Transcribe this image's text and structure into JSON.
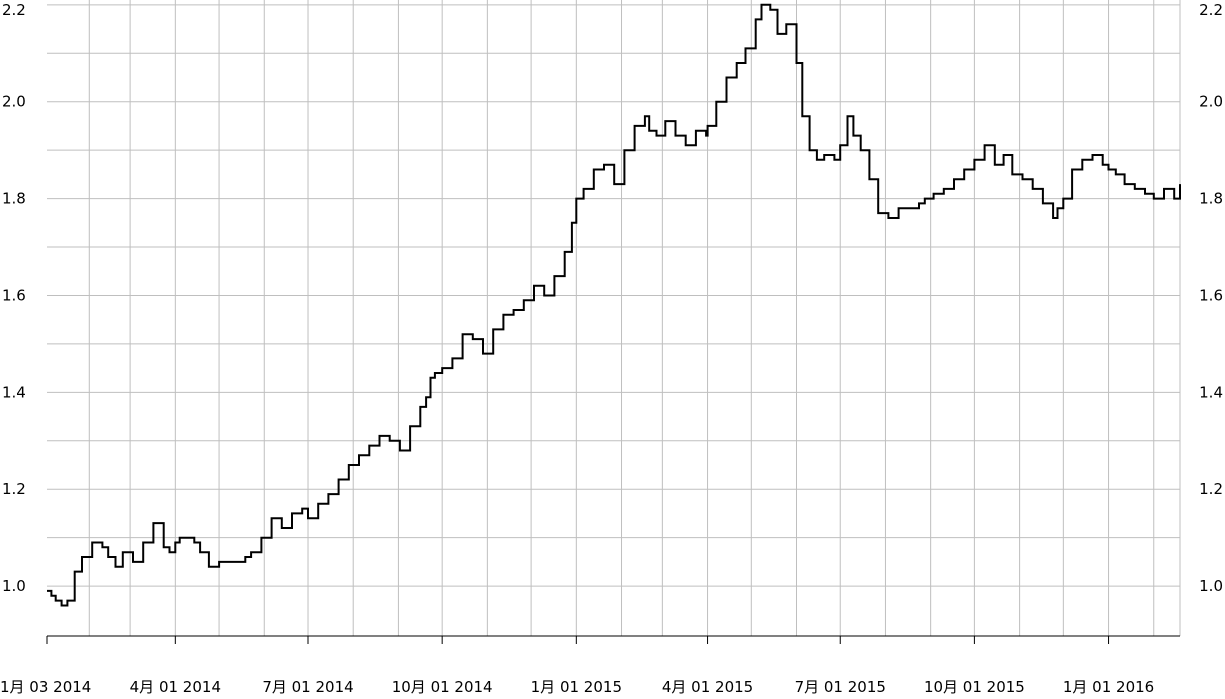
{
  "chart_data": {
    "type": "line",
    "title": "",
    "xlabel": "",
    "ylabel": "",
    "x_ticks": [
      "1月 03 2014",
      "4月 01 2014",
      "7月 01 2014",
      "10月 01 2014",
      "1月 01 2015",
      "4月 01 2015",
      "7月 01 2015",
      "10月 01 2015",
      "1月 01 2016"
    ],
    "y_ticks": [
      "1.0",
      "1.2",
      "1.4",
      "1.6",
      "1.8",
      "2.0",
      "2.2"
    ],
    "ylim": [
      0.93,
      2.21
    ],
    "xlim": [
      "2014-01-03",
      "2016-02-19"
    ],
    "grid": true,
    "colors": {
      "line": "#000000",
      "grid": "#bfbfbf",
      "axis": "#000000",
      "background": "#ffffff"
    },
    "series": [
      {
        "x": [
          "2014-01-03",
          "2014-01-06",
          "2014-01-09",
          "2014-01-13",
          "2014-01-17",
          "2014-01-22",
          "2014-01-27",
          "2014-02-03",
          "2014-02-10",
          "2014-02-14",
          "2014-02-19",
          "2014-02-24",
          "2014-03-03",
          "2014-03-10",
          "2014-03-17",
          "2014-03-24",
          "2014-03-28",
          "2014-04-01",
          "2014-04-04",
          "2014-04-09",
          "2014-04-14",
          "2014-04-18",
          "2014-04-24",
          "2014-05-01",
          "2014-05-06",
          "2014-05-12",
          "2014-05-19",
          "2014-05-23",
          "2014-05-30",
          "2014-06-06",
          "2014-06-13",
          "2014-06-20",
          "2014-06-27",
          "2014-07-01",
          "2014-07-08",
          "2014-07-15",
          "2014-07-22",
          "2014-07-29",
          "2014-08-05",
          "2014-08-12",
          "2014-08-19",
          "2014-08-26",
          "2014-09-02",
          "2014-09-09",
          "2014-09-16",
          "2014-09-20",
          "2014-09-23",
          "2014-09-26",
          "2014-10-01",
          "2014-10-08",
          "2014-10-15",
          "2014-10-22",
          "2014-10-29",
          "2014-11-05",
          "2014-11-12",
          "2014-11-19",
          "2014-11-26",
          "2014-12-03",
          "2014-12-10",
          "2014-12-17",
          "2014-12-24",
          "2014-12-29",
          "2015-01-01",
          "2015-01-06",
          "2015-01-13",
          "2015-01-20",
          "2015-01-27",
          "2015-02-03",
          "2015-02-10",
          "2015-02-17",
          "2015-02-20",
          "2015-02-25",
          "2015-03-03",
          "2015-03-10",
          "2015-03-17",
          "2015-03-24",
          "2015-03-31",
          "2015-04-01",
          "2015-04-07",
          "2015-04-14",
          "2015-04-21",
          "2015-04-27",
          "2015-05-04",
          "2015-05-08",
          "2015-05-14",
          "2015-05-19",
          "2015-05-25",
          "2015-06-01",
          "2015-06-05",
          "2015-06-10",
          "2015-06-15",
          "2015-06-20",
          "2015-06-27",
          "2015-07-01",
          "2015-07-06",
          "2015-07-10",
          "2015-07-15",
          "2015-07-21",
          "2015-07-27",
          "2015-08-03",
          "2015-08-10",
          "2015-08-17",
          "2015-08-24",
          "2015-08-28",
          "2015-09-03",
          "2015-09-10",
          "2015-09-17",
          "2015-09-24",
          "2015-10-01",
          "2015-10-08",
          "2015-10-15",
          "2015-10-21",
          "2015-10-27",
          "2015-11-03",
          "2015-11-10",
          "2015-11-17",
          "2015-11-24",
          "2015-11-27",
          "2015-12-01",
          "2015-12-07",
          "2015-12-14",
          "2015-12-21",
          "2015-12-28",
          "2016-01-01",
          "2016-01-06",
          "2016-01-12",
          "2016-01-19",
          "2016-01-26",
          "2016-02-01",
          "2016-02-08",
          "2016-02-15",
          "2016-02-19"
        ],
        "y": [
          0.99,
          0.98,
          0.97,
          0.96,
          0.97,
          1.03,
          1.06,
          1.09,
          1.08,
          1.06,
          1.04,
          1.07,
          1.05,
          1.09,
          1.13,
          1.08,
          1.07,
          1.09,
          1.1,
          1.1,
          1.09,
          1.07,
          1.04,
          1.05,
          1.05,
          1.05,
          1.06,
          1.07,
          1.1,
          1.14,
          1.12,
          1.15,
          1.16,
          1.14,
          1.17,
          1.19,
          1.22,
          1.25,
          1.27,
          1.29,
          1.31,
          1.3,
          1.28,
          1.33,
          1.37,
          1.39,
          1.43,
          1.44,
          1.45,
          1.47,
          1.52,
          1.51,
          1.48,
          1.53,
          1.56,
          1.57,
          1.59,
          1.62,
          1.6,
          1.64,
          1.69,
          1.75,
          1.8,
          1.82,
          1.86,
          1.87,
          1.83,
          1.9,
          1.95,
          1.97,
          1.94,
          1.93,
          1.96,
          1.93,
          1.91,
          1.94,
          1.93,
          1.95,
          2.0,
          2.05,
          2.08,
          2.11,
          2.17,
          2.2,
          2.19,
          2.14,
          2.16,
          2.08,
          1.97,
          1.9,
          1.88,
          1.89,
          1.88,
          1.91,
          1.97,
          1.93,
          1.9,
          1.84,
          1.77,
          1.76,
          1.78,
          1.78,
          1.79,
          1.8,
          1.81,
          1.82,
          1.84,
          1.86,
          1.88,
          1.91,
          1.87,
          1.89,
          1.85,
          1.84,
          1.82,
          1.79,
          1.76,
          1.78,
          1.8,
          1.86,
          1.88,
          1.89,
          1.87,
          1.86,
          1.85,
          1.83,
          1.82,
          1.81,
          1.8,
          1.82,
          1.8,
          1.83
        ]
      }
    ]
  }
}
